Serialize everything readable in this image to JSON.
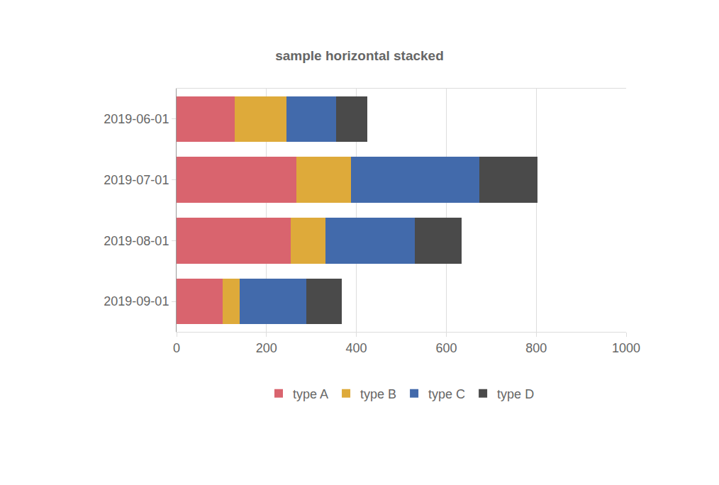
{
  "chart_data": {
    "type": "bar",
    "title": "sample horizontal stacked",
    "orientation": "horizontal",
    "stacked": true,
    "grid": true,
    "legend": "bottom",
    "categories": [
      "2019-06-01",
      "2019-07-01",
      "2019-08-01",
      "2019-09-01"
    ],
    "series": [
      {
        "name": "type A",
        "color": "#d9646e",
        "values": [
          130,
          267,
          254,
          103
        ]
      },
      {
        "name": "type B",
        "color": "#deaa3a",
        "values": [
          115,
          121,
          77,
          38
        ]
      },
      {
        "name": "type C",
        "color": "#426aab",
        "values": [
          110,
          285,
          199,
          147
        ]
      },
      {
        "name": "type D",
        "color": "#4a4a4a",
        "values": [
          70,
          130,
          104,
          79
        ]
      }
    ],
    "xlim": [
      0,
      1000
    ],
    "xticks": [
      0,
      200,
      400,
      600,
      800,
      1000
    ]
  }
}
